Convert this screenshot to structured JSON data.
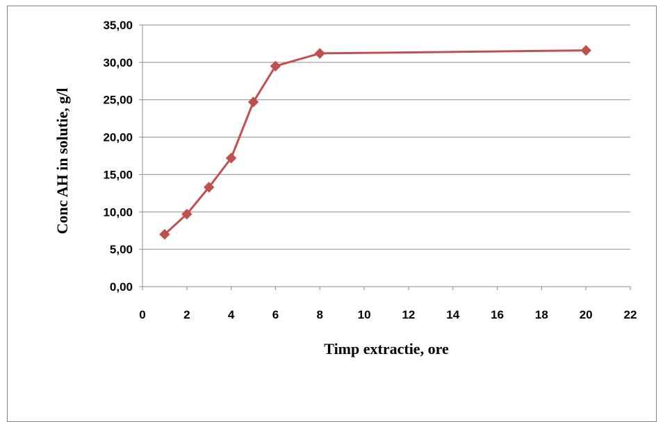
{
  "chart_data": {
    "type": "line",
    "xlabel": "Timp extractie, ore",
    "ylabel": "Conc AH in solutie, g/l",
    "xlim": [
      0,
      22
    ],
    "ylim": [
      0,
      35
    ],
    "x_ticks": [
      "0",
      "2",
      "4",
      "6",
      "8",
      "10",
      "12",
      "14",
      "16",
      "18",
      "20",
      "22"
    ],
    "y_ticks": [
      "0,00",
      "5,00",
      "10,00",
      "15,00",
      "20,00",
      "25,00",
      "30,00",
      "35,00"
    ],
    "grid": "horizontal",
    "legend": "none",
    "series": [
      {
        "color": "#c0504d",
        "marker": "diamond",
        "x": [
          1,
          2,
          3,
          4,
          5,
          6,
          8,
          20
        ],
        "y": [
          7.0,
          9.7,
          13.3,
          17.2,
          24.7,
          29.5,
          31.2,
          31.6
        ]
      }
    ]
  }
}
